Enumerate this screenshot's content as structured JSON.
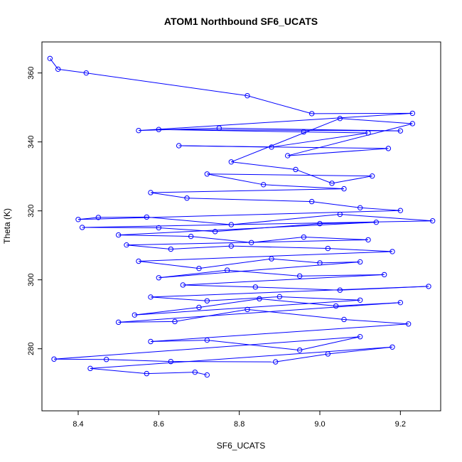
{
  "chart_data": {
    "type": "line",
    "title": "ATOM1 Northbound SF6_UCATS",
    "xlabel": "SF6_UCATS",
    "ylabel": "Theta (K)",
    "xlim": [
      8.31,
      9.3
    ],
    "ylim": [
      262,
      369
    ],
    "x_ticks": [
      8.4,
      8.6,
      8.8,
      9.0,
      9.2
    ],
    "x_tick_labels": [
      "8.4",
      "8.6",
      "8.8",
      "9.0",
      "9.2"
    ],
    "y_ticks": [
      280,
      300,
      320,
      340,
      360
    ],
    "y_tick_labels": [
      "280",
      "300",
      "320",
      "340",
      "360"
    ],
    "grid": false,
    "legend": "none",
    "series": [
      {
        "color": "#0000ff",
        "marker": "open-circle",
        "points": [
          [
            8.33,
            364.2
          ],
          [
            8.35,
            361.1
          ],
          [
            8.42,
            360.0
          ],
          [
            8.82,
            353.4
          ],
          [
            8.98,
            348.2
          ],
          [
            9.23,
            348.3
          ],
          [
            8.55,
            343.3
          ],
          [
            8.75,
            344.0
          ],
          [
            9.2,
            343.2
          ],
          [
            8.6,
            343.6
          ],
          [
            8.96,
            342.9
          ],
          [
            9.12,
            342.6
          ],
          [
            8.88,
            338.5
          ],
          [
            8.65,
            338.9
          ],
          [
            9.17,
            338.1
          ],
          [
            8.92,
            336.0
          ],
          [
            9.23,
            345.3
          ],
          [
            9.05,
            346.8
          ],
          [
            8.78,
            334.2
          ],
          [
            8.94,
            332.0
          ],
          [
            9.03,
            328.0
          ],
          [
            9.13,
            330.1
          ],
          [
            8.72,
            330.7
          ],
          [
            8.86,
            327.6
          ],
          [
            9.06,
            326.4
          ],
          [
            8.58,
            325.3
          ],
          [
            8.67,
            323.7
          ],
          [
            8.98,
            322.7
          ],
          [
            9.1,
            320.9
          ],
          [
            9.2,
            320.1
          ],
          [
            8.4,
            317.5
          ],
          [
            8.45,
            318.1
          ],
          [
            8.57,
            318.2
          ],
          [
            8.78,
            316.0
          ],
          [
            9.05,
            319.0
          ],
          [
            9.28,
            317.1
          ],
          [
            8.41,
            315.2
          ],
          [
            8.6,
            315.1
          ],
          [
            8.74,
            314.0
          ],
          [
            9.0,
            316.3
          ],
          [
            9.14,
            316.7
          ],
          [
            8.5,
            313.0
          ],
          [
            8.68,
            312.6
          ],
          [
            8.83,
            310.8
          ],
          [
            8.96,
            312.4
          ],
          [
            9.12,
            311.6
          ],
          [
            8.52,
            310.1
          ],
          [
            8.63,
            308.9
          ],
          [
            8.78,
            309.8
          ],
          [
            9.02,
            309.1
          ],
          [
            9.18,
            308.2
          ],
          [
            8.55,
            305.4
          ],
          [
            8.7,
            303.3
          ],
          [
            8.88,
            306.1
          ],
          [
            9.0,
            304.9
          ],
          [
            9.1,
            305.2
          ],
          [
            8.6,
            300.6
          ],
          [
            8.77,
            302.8
          ],
          [
            8.95,
            301.1
          ],
          [
            9.16,
            301.5
          ],
          [
            8.66,
            298.5
          ],
          [
            8.84,
            297.9
          ],
          [
            9.05,
            297.0
          ],
          [
            9.27,
            298.1
          ],
          [
            8.58,
            295.0
          ],
          [
            8.72,
            293.9
          ],
          [
            8.9,
            295.1
          ],
          [
            9.1,
            294.1
          ],
          [
            8.54,
            289.8
          ],
          [
            8.7,
            292.0
          ],
          [
            8.85,
            294.5
          ],
          [
            9.04,
            292.4
          ],
          [
            9.2,
            293.4
          ],
          [
            8.5,
            287.7
          ],
          [
            8.64,
            287.9
          ],
          [
            8.82,
            291.4
          ],
          [
            9.06,
            288.5
          ],
          [
            9.22,
            287.2
          ],
          [
            8.58,
            282.1
          ],
          [
            8.72,
            282.5
          ],
          [
            8.95,
            279.6
          ],
          [
            9.1,
            283.5
          ],
          [
            8.34,
            277.0
          ],
          [
            8.47,
            276.9
          ],
          [
            8.63,
            276.3
          ],
          [
            8.89,
            276.2
          ],
          [
            9.02,
            278.5
          ],
          [
            9.18,
            280.5
          ],
          [
            8.43,
            274.3
          ],
          [
            8.57,
            272.8
          ],
          [
            8.69,
            273.2
          ],
          [
            8.72,
            272.4
          ]
        ]
      }
    ]
  }
}
